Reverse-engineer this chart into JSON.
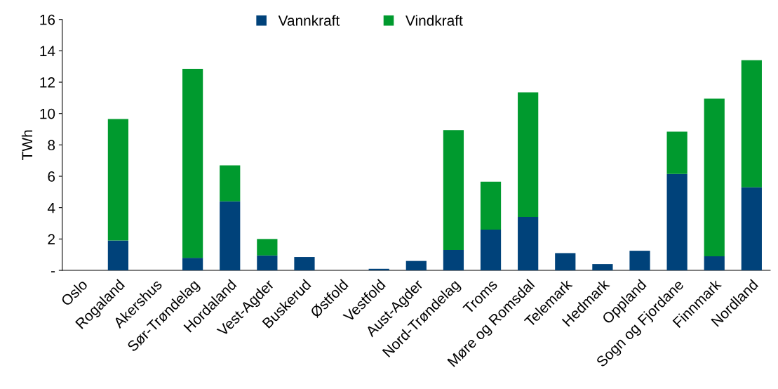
{
  "chart_data": {
    "type": "bar",
    "stacked": true,
    "ylabel": "TWh",
    "categories": [
      "Oslo",
      "Rogaland",
      "Akershus",
      "Sør-Trøndelag",
      "Hordaland",
      "Vest-Agder",
      "Buskerud",
      "Østfold",
      "Vestfold",
      "Aust-Agder",
      "Nord-Trøndelag",
      "Troms",
      "Møre og Romsdal",
      "Telemark",
      "Hedmark",
      "Oppland",
      "Sogn og Fjordane",
      "Finnmark",
      "Nordland"
    ],
    "series": [
      {
        "name": "Vannkraft",
        "color": "#00427a",
        "values": [
          0,
          1.9,
          0,
          0.8,
          4.4,
          0.95,
          0.85,
          0,
          0.1,
          0.6,
          1.3,
          2.6,
          3.4,
          1.1,
          0.4,
          1.25,
          6.15,
          0.9,
          5.3
        ]
      },
      {
        "name": "Vindkraft",
        "color": "#009a2e",
        "values": [
          0,
          7.75,
          0,
          12.05,
          2.3,
          1.05,
          0,
          0,
          0,
          0,
          7.65,
          3.05,
          7.95,
          0,
          0,
          0,
          2.7,
          10.05,
          8.1
        ]
      }
    ],
    "ylim": [
      0,
      16
    ],
    "yticks": [
      {
        "value": 0,
        "label": "-"
      },
      2,
      4,
      6,
      8,
      10,
      12,
      14,
      16
    ],
    "grid": false,
    "legend": "top"
  }
}
